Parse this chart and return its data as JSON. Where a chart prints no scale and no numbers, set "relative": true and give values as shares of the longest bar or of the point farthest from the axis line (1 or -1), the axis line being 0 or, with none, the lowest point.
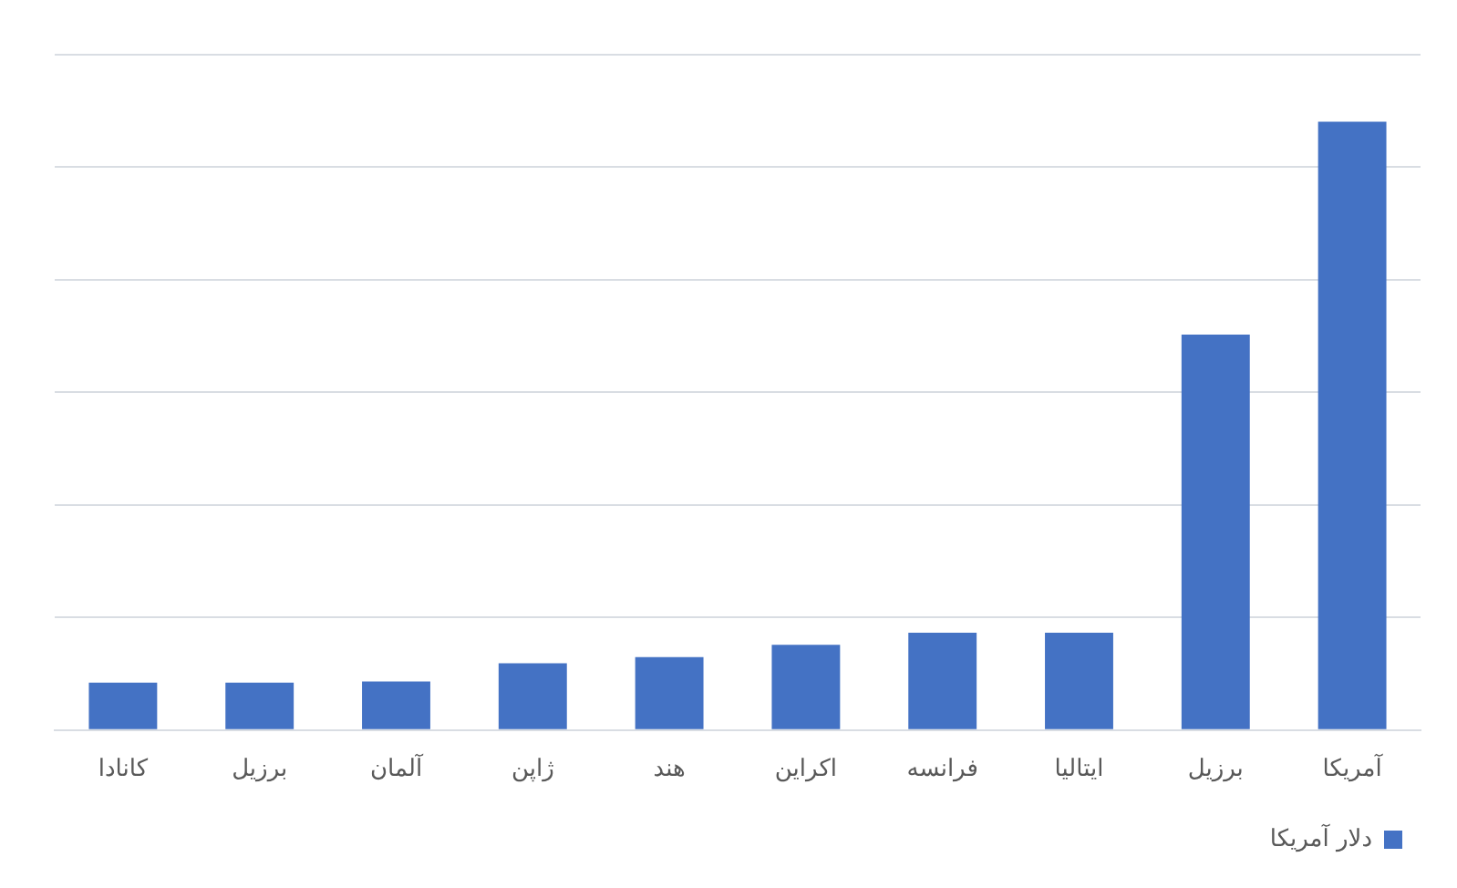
{
  "chart_data": {
    "type": "bar",
    "relative": true,
    "categories": [
      "کانادا",
      "برزیل",
      "آلمان",
      "ژاپن",
      "هند",
      "اکراین",
      "فرانسه",
      "ایتالیا",
      "برزیل",
      "آمریکا"
    ],
    "series": [
      {
        "name": "دلار آمریکا",
        "color": "#4472c4",
        "values": [
          0.078,
          0.078,
          0.08,
          0.11,
          0.12,
          0.14,
          0.16,
          0.16,
          0.65,
          1
        ]
      }
    ],
    "grid": "y",
    "legend": "bottom right"
  }
}
